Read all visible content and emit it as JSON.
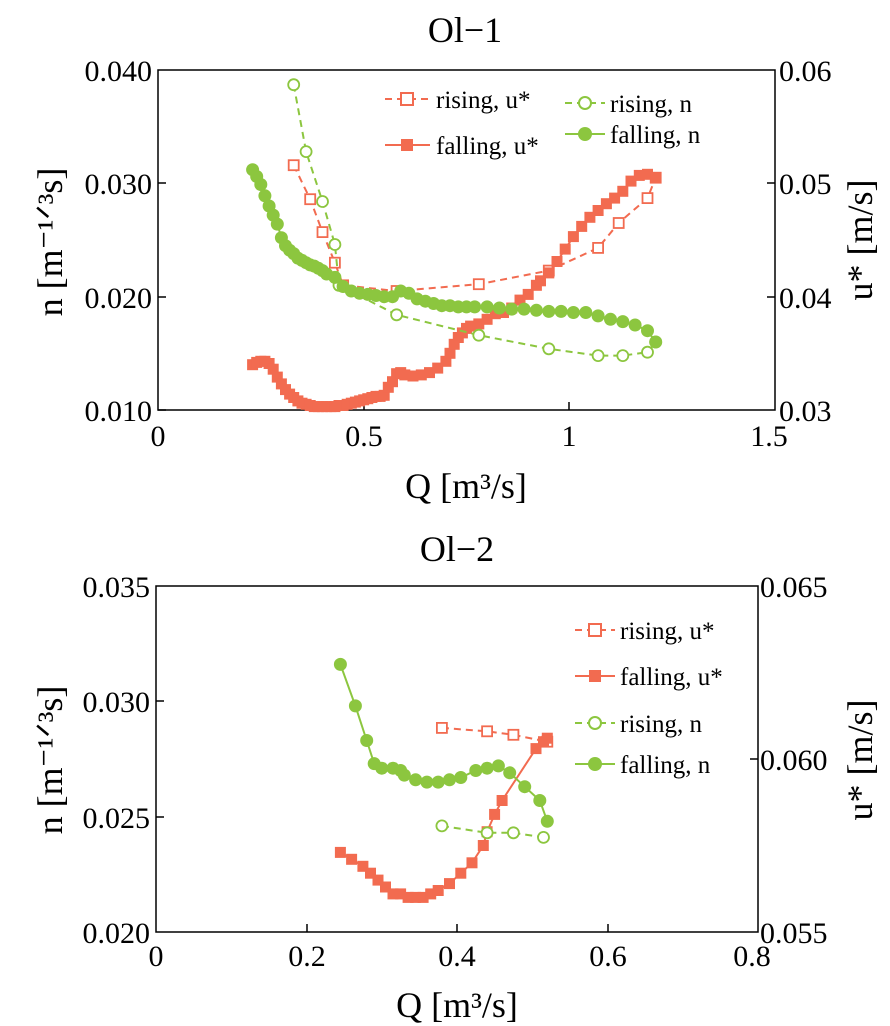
{
  "colors": {
    "u_series": "#f26b50",
    "n_series": "#8cc63f",
    "axis": "#000000"
  },
  "chart_data": [
    {
      "type": "line",
      "title": "Ol−1",
      "xlabel": "Q [m³/s]",
      "ylabel": "n [m⁻¹ᐟ³s]",
      "y2label": "u* [m/s]",
      "xlim": [
        0,
        1.5
      ],
      "ylim": [
        0.01,
        0.04
      ],
      "y2lim": [
        0.03,
        0.06
      ],
      "xticks": [
        "0",
        "0.5",
        "1",
        "1.5"
      ],
      "yticks": [
        "0.010",
        "0.020",
        "0.030",
        "0.040"
      ],
      "y2ticks": [
        "0.03",
        "0.04",
        "0.05",
        "0.06"
      ],
      "grid": false,
      "legend_position": "top",
      "series": [
        {
          "name": "rising, u*",
          "axis": "right",
          "marker": "square-open",
          "dash": true,
          "x": [
            0.33,
            0.37,
            0.4,
            0.43,
            0.45,
            0.58,
            0.78,
            0.95,
            1.07,
            1.12,
            1.19,
            1.21
          ],
          "y": [
            0.0516,
            0.0486,
            0.0457,
            0.043,
            0.041,
            0.0405,
            0.0411,
            0.0423,
            0.0443,
            0.0465,
            0.0487,
            0.0505
          ]
        },
        {
          "name": "falling, u*",
          "axis": "right",
          "marker": "square",
          "dash": false,
          "x": [
            0.23,
            0.24,
            0.25,
            0.26,
            0.27,
            0.28,
            0.29,
            0.3,
            0.31,
            0.32,
            0.33,
            0.34,
            0.35,
            0.36,
            0.37,
            0.38,
            0.39,
            0.4,
            0.41,
            0.42,
            0.43,
            0.44,
            0.45,
            0.46,
            0.47,
            0.48,
            0.49,
            0.5,
            0.51,
            0.52,
            0.53,
            0.54,
            0.55,
            0.56,
            0.57,
            0.58,
            0.59,
            0.6,
            0.62,
            0.64,
            0.66,
            0.68,
            0.7,
            0.71,
            0.72,
            0.73,
            0.74,
            0.75,
            0.76,
            0.78,
            0.8,
            0.82,
            0.84,
            0.86,
            0.88,
            0.9,
            0.92,
            0.93,
            0.95,
            0.97,
            0.99,
            1.01,
            1.03,
            1.05,
            1.07,
            1.09,
            1.11,
            1.13,
            1.15,
            1.17,
            1.19,
            1.21
          ],
          "y": [
            0.034,
            0.0342,
            0.0343,
            0.0343,
            0.0341,
            0.0336,
            0.0329,
            0.0323,
            0.0318,
            0.0314,
            0.0311,
            0.0308,
            0.0306,
            0.0305,
            0.0304,
            0.0303,
            0.0303,
            0.0303,
            0.0303,
            0.0303,
            0.0303,
            0.0304,
            0.0304,
            0.0305,
            0.0306,
            0.0307,
            0.0308,
            0.0309,
            0.031,
            0.0311,
            0.0312,
            0.0312,
            0.0313,
            0.032,
            0.0325,
            0.0332,
            0.0333,
            0.0331,
            0.033,
            0.0331,
            0.0333,
            0.0337,
            0.0343,
            0.035,
            0.0358,
            0.0364,
            0.0368,
            0.0372,
            0.0374,
            0.0376,
            0.038,
            0.0385,
            0.0386,
            0.039,
            0.0397,
            0.0402,
            0.041,
            0.0414,
            0.0421,
            0.0431,
            0.0442,
            0.0453,
            0.0462,
            0.047,
            0.0476,
            0.0482,
            0.0487,
            0.0493,
            0.0502,
            0.0507,
            0.0508,
            0.0505
          ]
        },
        {
          "name": "rising, n",
          "axis": "left",
          "marker": "circle-open",
          "dash": true,
          "x": [
            0.33,
            0.36,
            0.4,
            0.43,
            0.44,
            0.58,
            0.78,
            0.95,
            1.07,
            1.13,
            1.19,
            1.21
          ],
          "y": [
            0.0387,
            0.0328,
            0.0284,
            0.0246,
            0.021,
            0.0184,
            0.0166,
            0.0154,
            0.0148,
            0.0148,
            0.0151,
            0.016
          ]
        },
        {
          "name": "falling, n",
          "axis": "left",
          "marker": "circle",
          "dash": false,
          "x": [
            0.23,
            0.24,
            0.25,
            0.26,
            0.27,
            0.28,
            0.29,
            0.3,
            0.31,
            0.32,
            0.33,
            0.34,
            0.35,
            0.36,
            0.37,
            0.38,
            0.39,
            0.4,
            0.41,
            0.43,
            0.45,
            0.47,
            0.49,
            0.51,
            0.53,
            0.55,
            0.57,
            0.59,
            0.61,
            0.63,
            0.65,
            0.67,
            0.69,
            0.71,
            0.73,
            0.75,
            0.77,
            0.8,
            0.83,
            0.86,
            0.89,
            0.92,
            0.95,
            0.98,
            1.01,
            1.04,
            1.07,
            1.1,
            1.13,
            1.16,
            1.19,
            1.21
          ],
          "y": [
            0.0312,
            0.0306,
            0.0299,
            0.0289,
            0.028,
            0.0272,
            0.0264,
            0.0252,
            0.0245,
            0.0241,
            0.0238,
            0.0234,
            0.0232,
            0.023,
            0.0228,
            0.0227,
            0.0225,
            0.0223,
            0.022,
            0.0217,
            0.0209,
            0.0205,
            0.0203,
            0.0202,
            0.0201,
            0.02,
            0.02,
            0.0205,
            0.0203,
            0.0198,
            0.0196,
            0.0194,
            0.0192,
            0.0192,
            0.0191,
            0.0191,
            0.0191,
            0.0191,
            0.019,
            0.0189,
            0.0189,
            0.0188,
            0.0187,
            0.0187,
            0.0186,
            0.0186,
            0.0183,
            0.018,
            0.0178,
            0.0175,
            0.017,
            0.016
          ]
        }
      ]
    },
    {
      "type": "line",
      "title": "Ol−2",
      "xlabel": "Q [m³/s]",
      "ylabel": "n [m⁻¹ᐟ³s]",
      "y2label": "u* [m/s]",
      "xlim": [
        0,
        0.8
      ],
      "ylim": [
        0.02,
        0.035
      ],
      "y2lim": [
        0.055,
        0.065
      ],
      "xticks": [
        "0",
        "0.2",
        "0.4",
        "0.6",
        "0.8"
      ],
      "yticks": [
        "0.020",
        "0.025",
        "0.030",
        "0.035"
      ],
      "y2ticks": [
        "0.055",
        "0.060",
        "0.065"
      ],
      "grid": false,
      "legend_position": "right",
      "series": [
        {
          "name": "rising, u*",
          "axis": "right",
          "marker": "square-open",
          "dash": true,
          "x": [
            0.38,
            0.44,
            0.475,
            0.52
          ],
          "y": [
            0.0609,
            0.0608,
            0.0607,
            0.0605
          ]
        },
        {
          "name": "falling, u*",
          "axis": "right",
          "marker": "square",
          "dash": false,
          "x": [
            0.245,
            0.26,
            0.275,
            0.285,
            0.295,
            0.305,
            0.315,
            0.325,
            0.335,
            0.345,
            0.355,
            0.365,
            0.375,
            0.39,
            0.405,
            0.42,
            0.435,
            0.44,
            0.45,
            0.46,
            0.505,
            0.515,
            0.52
          ],
          "y": [
            0.0573,
            0.0571,
            0.0569,
            0.0567,
            0.0565,
            0.0563,
            0.0561,
            0.0561,
            0.056,
            0.056,
            0.056,
            0.0561,
            0.0562,
            0.0564,
            0.0567,
            0.057,
            0.0575,
            0.0579,
            0.0584,
            0.0588,
            0.0603,
            0.0605,
            0.0606
          ]
        },
        {
          "name": "rising, n",
          "axis": "left",
          "marker": "circle-open",
          "dash": true,
          "x": [
            0.38,
            0.44,
            0.475,
            0.515
          ],
          "y": [
            0.0246,
            0.0243,
            0.0243,
            0.0241
          ]
        },
        {
          "name": "falling, n",
          "axis": "left",
          "marker": "circle",
          "dash": false,
          "x": [
            0.245,
            0.265,
            0.28,
            0.29,
            0.3,
            0.315,
            0.325,
            0.33,
            0.345,
            0.36,
            0.375,
            0.39,
            0.405,
            0.425,
            0.44,
            0.455,
            0.47,
            0.49,
            0.51,
            0.52
          ],
          "y": [
            0.0316,
            0.0298,
            0.0283,
            0.0273,
            0.0271,
            0.0271,
            0.027,
            0.0268,
            0.0266,
            0.0265,
            0.0265,
            0.0266,
            0.0267,
            0.027,
            0.0271,
            0.0272,
            0.0269,
            0.0263,
            0.0257,
            0.0248
          ]
        }
      ]
    }
  ]
}
